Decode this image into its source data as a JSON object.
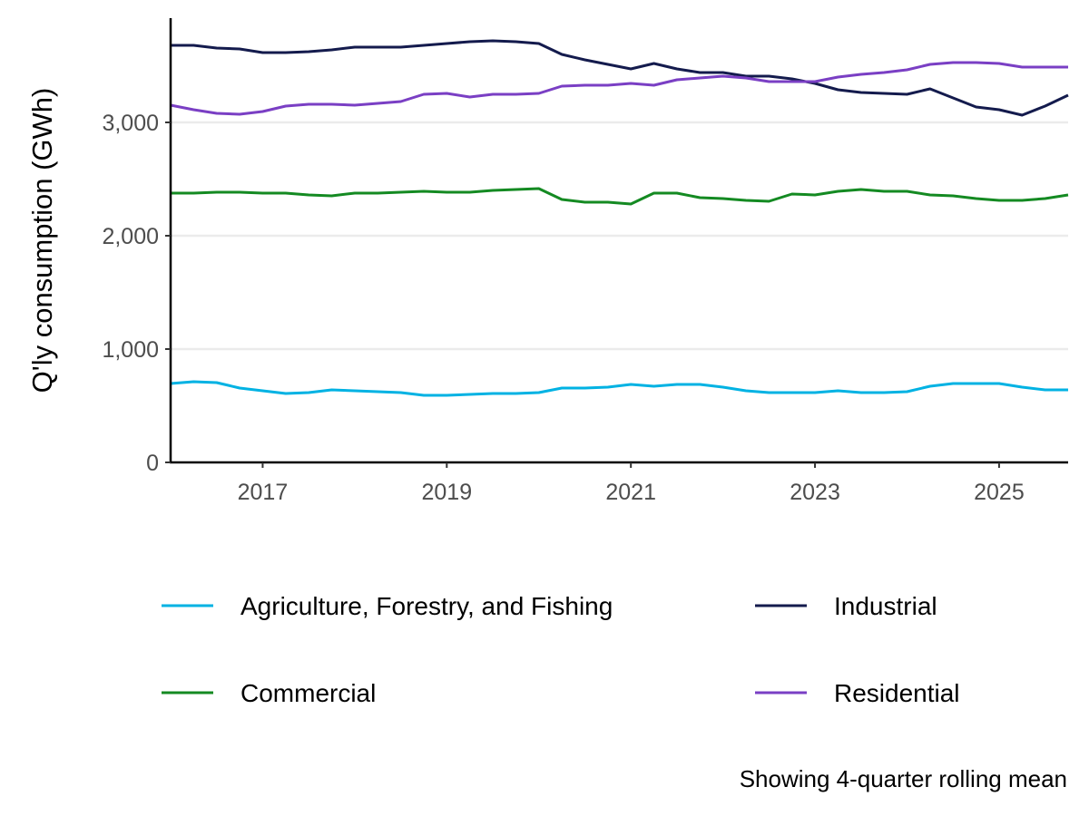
{
  "chart_data": {
    "type": "line",
    "title": "",
    "xlabel": "",
    "ylabel": "Q'ly consumption (GWh)",
    "caption": "Showing 4-quarter rolling mean",
    "xlim": [
      2016.0,
      2025.75
    ],
    "ylim": [
      0,
      3920
    ],
    "x_ticks": [
      2017,
      2019,
      2021,
      2023,
      2025
    ],
    "x_tick_labels": [
      "2017",
      "2019",
      "2021",
      "2023",
      "2025"
    ],
    "y_ticks": [
      0,
      1000,
      2000,
      3000
    ],
    "y_tick_labels": [
      "0",
      "1,000",
      "2,000",
      "3,000"
    ],
    "grid": "horizontal major",
    "legend_position": "bottom",
    "x_start": 2016.0,
    "x_step_quarters": 0.25,
    "series": [
      {
        "name": "Agriculture, Forestry, and Fishing",
        "color": "#00b2e3",
        "values": [
          696,
          712,
          704,
          656,
          632,
          608,
          616,
          640,
          632,
          624,
          616,
          592,
          592,
          600,
          608,
          608,
          616,
          656,
          656,
          664,
          688,
          672,
          688,
          688,
          664,
          632,
          616,
          616,
          616,
          632,
          616,
          616,
          624,
          672,
          696,
          696,
          696,
          664,
          640,
          640
        ]
      },
      {
        "name": "Industrial",
        "color": "#141b4d",
        "values": [
          3680,
          3680,
          3656,
          3648,
          3616,
          3616,
          3624,
          3640,
          3664,
          3664,
          3664,
          3680,
          3696,
          3712,
          3720,
          3712,
          3696,
          3600,
          3552,
          3512,
          3472,
          3520,
          3472,
          3440,
          3440,
          3408,
          3408,
          3384,
          3344,
          3288,
          3264,
          3256,
          3248,
          3296,
          3216,
          3136,
          3112,
          3064,
          3144,
          3240
        ]
      },
      {
        "name": "Commercial",
        "color": "#148a22",
        "values": [
          2376,
          2376,
          2384,
          2384,
          2376,
          2376,
          2360,
          2352,
          2376,
          2376,
          2384,
          2392,
          2384,
          2384,
          2400,
          2408,
          2416,
          2320,
          2296,
          2296,
          2280,
          2376,
          2376,
          2336,
          2328,
          2312,
          2304,
          2368,
          2360,
          2392,
          2408,
          2392,
          2392,
          2360,
          2352,
          2328,
          2312,
          2312,
          2328,
          2360
        ]
      },
      {
        "name": "Residential",
        "color": "#7a3fc4",
        "values": [
          3152,
          3112,
          3080,
          3072,
          3096,
          3144,
          3160,
          3160,
          3152,
          3168,
          3184,
          3248,
          3256,
          3224,
          3248,
          3248,
          3256,
          3320,
          3328,
          3328,
          3344,
          3328,
          3376,
          3392,
          3408,
          3392,
          3360,
          3360,
          3360,
          3400,
          3424,
          3440,
          3464,
          3512,
          3528,
          3528,
          3520,
          3488,
          3488,
          3488
        ]
      }
    ],
    "legend_order": [
      0,
      1,
      2,
      3
    ]
  }
}
